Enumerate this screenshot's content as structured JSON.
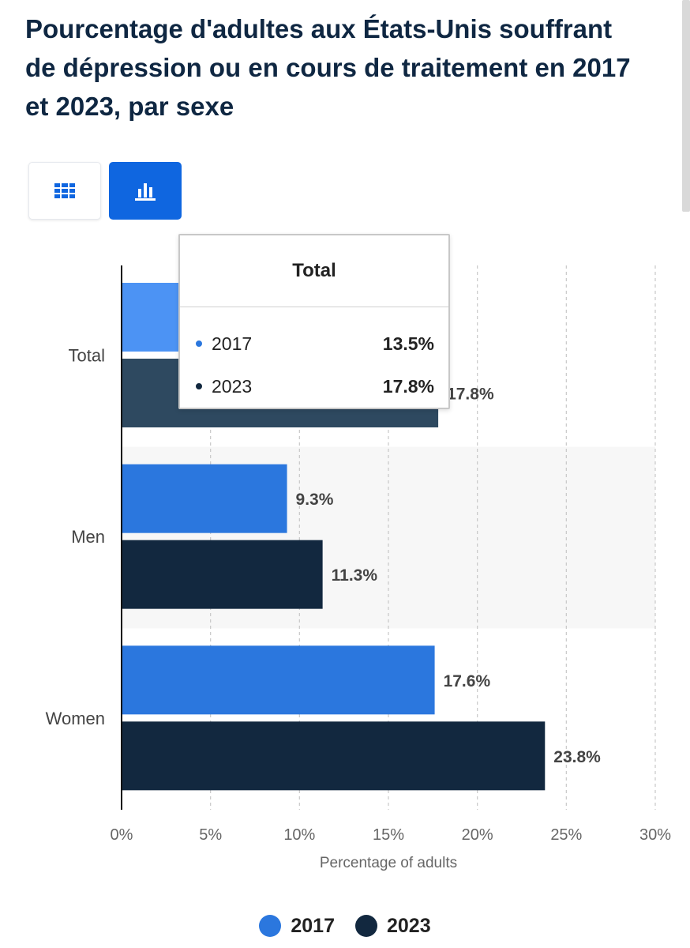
{
  "title": "Pourcentage d'adultes aux États-Unis souffrant de dépression ou en cours de traitement en 2017 et 2023, par sexe",
  "view_toggle": {
    "table_icon": "grid-table-icon",
    "chart_icon": "bar-chart-icon",
    "active": "chart"
  },
  "colors": {
    "series_2017": "#2b77de",
    "series_2017_highlight": "#4c93f4",
    "series_2023": "#12283f",
    "series_2023_highlight": "#2e4960",
    "active_button": "#0f66e0",
    "hover_band": "#f7f7f7"
  },
  "chart_data": {
    "type": "bar",
    "orientation": "horizontal",
    "categories": [
      "Total",
      "Men",
      "Women"
    ],
    "series": [
      {
        "name": "2017",
        "values": [
          13.5,
          9.3,
          17.6
        ],
        "labels": [
          "13.5%",
          "9.3%",
          "17.6%"
        ]
      },
      {
        "name": "2023",
        "values": [
          17.8,
          11.3,
          23.8
        ],
        "labels": [
          "17.8%",
          "11.3%",
          "23.8%"
        ]
      }
    ],
    "xlabel": "Percentage of adults",
    "xlim": [
      0,
      30
    ],
    "xticks": [
      0,
      5,
      10,
      15,
      20,
      25,
      30
    ],
    "xtick_labels": [
      "0%",
      "5%",
      "10%",
      "15%",
      "20%",
      "25%",
      "30%"
    ],
    "grid": "vertical dashed",
    "legend": "bottom-center"
  },
  "legend": {
    "items": [
      {
        "label": "2017"
      },
      {
        "label": "2023"
      }
    ]
  },
  "tooltip": {
    "title": "Total",
    "rows": [
      {
        "label": "2017",
        "value": "13.5%"
      },
      {
        "label": "2023",
        "value": "17.8%"
      }
    ]
  }
}
